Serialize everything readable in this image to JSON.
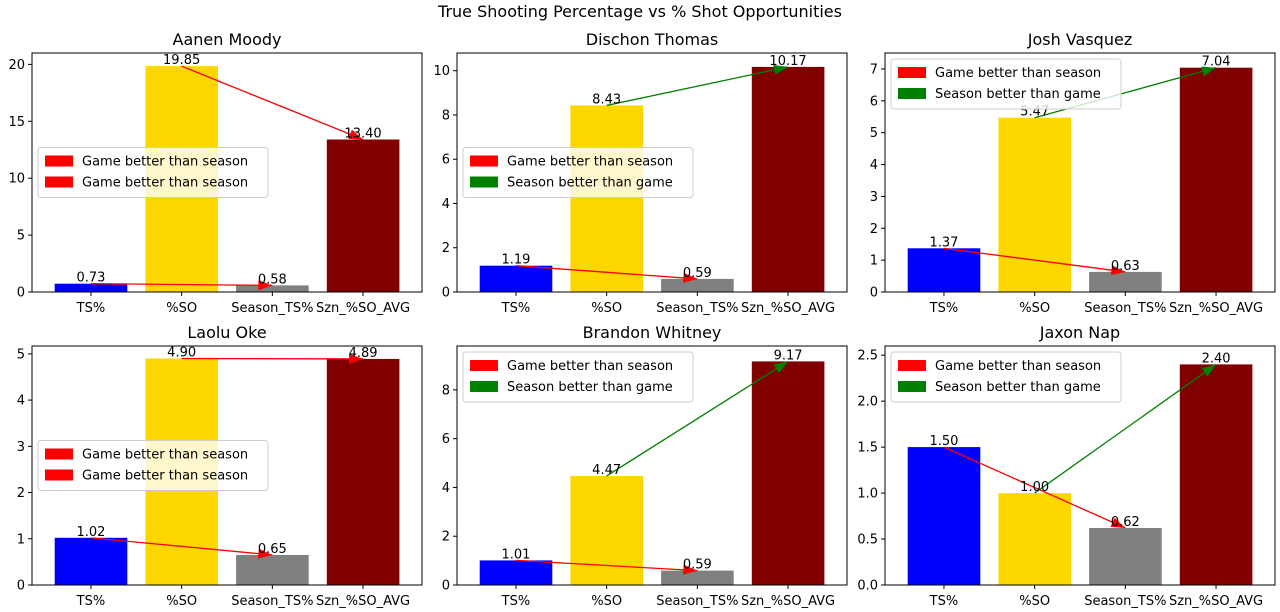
{
  "suptitle": "True Shooting Percentage vs % Shot Opportunities",
  "colors": {
    "ts": "#0000ff",
    "so": "#ffd700",
    "season_ts": "#808080",
    "szn_so_avg": "#800000",
    "game_better": "#ff0000",
    "season_better": "#008000"
  },
  "chart_data": [
    {
      "type": "bar",
      "title": "Aanen Moody",
      "categories": [
        "TS%",
        "%SO",
        "Season_TS%",
        "Szn_%SO_AVG"
      ],
      "values": [
        0.73,
        19.85,
        0.58,
        13.4
      ],
      "value_labels": [
        "0.73",
        "19.85",
        "0.58",
        "13.40"
      ],
      "ylim": [
        0,
        21
      ],
      "yticks": [
        0,
        5,
        10,
        15,
        20
      ],
      "ts_arrow": "game_better",
      "so_arrow": "game_better",
      "legend": [
        "Game better than season",
        "Game better than season"
      ],
      "legend_colors": [
        "game_better",
        "game_better"
      ],
      "legend_position": "center-left"
    },
    {
      "type": "bar",
      "title": "Dischon Thomas",
      "categories": [
        "TS%",
        "%SO",
        "Season_TS%",
        "Szn_%SO_AVG"
      ],
      "values": [
        1.19,
        8.43,
        0.59,
        10.17
      ],
      "value_labels": [
        "1.19",
        "8.43",
        "0.59",
        "10.17"
      ],
      "ylim": [
        0,
        10.8
      ],
      "yticks": [
        0,
        2,
        4,
        6,
        8,
        10
      ],
      "ts_arrow": "game_better",
      "so_arrow": "season_better",
      "legend": [
        "Game better than season",
        "Season better than game"
      ],
      "legend_colors": [
        "game_better",
        "season_better"
      ],
      "legend_position": "center-left"
    },
    {
      "type": "bar",
      "title": "Josh Vasquez",
      "categories": [
        "TS%",
        "%SO",
        "Season_TS%",
        "Szn_%SO_AVG"
      ],
      "values": [
        1.37,
        5.47,
        0.63,
        7.04
      ],
      "value_labels": [
        "1.37",
        "5.47",
        "0.63",
        "7.04"
      ],
      "ylim": [
        0,
        7.5
      ],
      "yticks": [
        0,
        1,
        2,
        3,
        4,
        5,
        6,
        7
      ],
      "ts_arrow": "game_better",
      "so_arrow": "season_better",
      "legend": [
        "Game better than season",
        "Season better than game"
      ],
      "legend_colors": [
        "game_better",
        "season_better"
      ],
      "legend_position": "upper-left"
    },
    {
      "type": "bar",
      "title": "Laolu Oke",
      "categories": [
        "TS%",
        "%SO",
        "Season_TS%",
        "Szn_%SO_AVG"
      ],
      "values": [
        1.02,
        4.9,
        0.65,
        4.89
      ],
      "value_labels": [
        "1.02",
        "4.90",
        "0.65",
        "4.89"
      ],
      "ylim": [
        0,
        5.17
      ],
      "yticks": [
        0,
        1,
        2,
        3,
        4,
        5
      ],
      "ts_arrow": "game_better",
      "so_arrow": "game_better",
      "legend": [
        "Game better than season",
        "Game better than season"
      ],
      "legend_colors": [
        "game_better",
        "game_better"
      ],
      "legend_position": "center-left"
    },
    {
      "type": "bar",
      "title": "Brandon Whitney",
      "categories": [
        "TS%",
        "%SO",
        "Season_TS%",
        "Szn_%SO_AVG"
      ],
      "values": [
        1.01,
        4.47,
        0.59,
        9.17
      ],
      "value_labels": [
        "1.01",
        "4.47",
        "0.59",
        "9.17"
      ],
      "ylim": [
        0,
        9.8
      ],
      "yticks": [
        0,
        2,
        4,
        6,
        8
      ],
      "ts_arrow": "game_better",
      "so_arrow": "season_better",
      "legend": [
        "Game better than season",
        "Season better than game"
      ],
      "legend_colors": [
        "game_better",
        "season_better"
      ],
      "legend_position": "upper-left"
    },
    {
      "type": "bar",
      "title": "Jaxon Nap",
      "categories": [
        "TS%",
        "%SO",
        "Season_TS%",
        "Szn_%SO_AVG"
      ],
      "values": [
        1.5,
        1.0,
        0.62,
        2.4
      ],
      "value_labels": [
        "1.50",
        "1.00",
        "0.62",
        "2.40"
      ],
      "ylim": [
        0,
        2.6
      ],
      "yticks": [
        0,
        0.5,
        1.0,
        1.5,
        2.0,
        2.5
      ],
      "ts_arrow": "game_better",
      "so_arrow": "season_better",
      "legend": [
        "Game better than season",
        "Season better than game"
      ],
      "legend_colors": [
        "game_better",
        "season_better"
      ],
      "legend_position": "upper-left"
    }
  ]
}
